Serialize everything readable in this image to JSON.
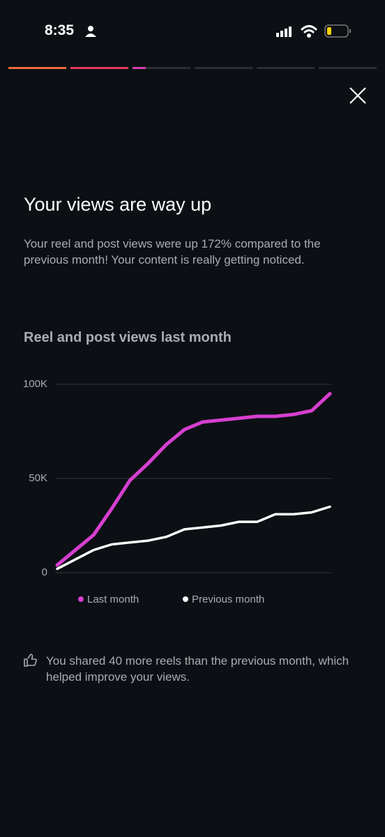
{
  "status_bar": {
    "time": "8:35"
  },
  "header": {
    "title": "Your views are way up",
    "body": "Your reel and post views were up 172% compared to the previous month! Your content is really getting noticed."
  },
  "chart_data": {
    "type": "line",
    "title": "Reel and post views last month",
    "categories": [
      null,
      null,
      null,
      null,
      null,
      null,
      null,
      null,
      null,
      null,
      null,
      null,
      null,
      null,
      null,
      null
    ],
    "series": [
      {
        "name": "Last month",
        "color": "#d63fd0",
        "values": [
          4000,
          12000,
          20000,
          34000,
          49000,
          58000,
          68000,
          76000,
          80000,
          81000,
          82000,
          83000,
          83000,
          84000,
          86000,
          95000
        ]
      },
      {
        "name": "Previous month",
        "color": "#ffffff",
        "values": [
          2000,
          7000,
          12000,
          15000,
          16000,
          17000,
          19000,
          23000,
          24000,
          25000,
          27000,
          27000,
          31000,
          31000,
          32000,
          35000
        ]
      }
    ],
    "ylim": [
      0,
      100000
    ],
    "yticks": [
      0,
      {
        "value": 50000,
        "label": "50K"
      },
      {
        "value": 100000,
        "label": "100K"
      }
    ],
    "grid": true,
    "legend": "bottom"
  },
  "footer": {
    "note": "You shared 40 more reels than the previous month, which helped improve your views."
  }
}
